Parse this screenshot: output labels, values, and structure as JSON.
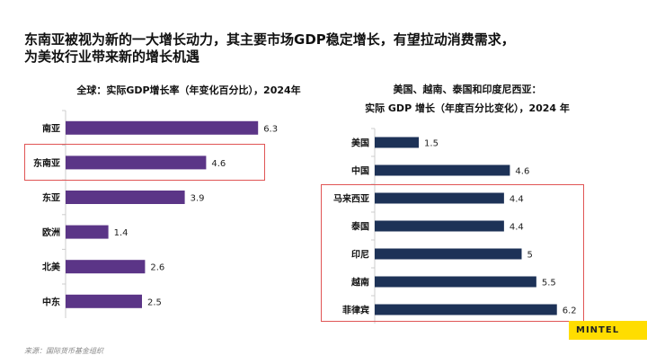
{
  "slide": {
    "title_line1": "东南亚被视为新的一大增长动力，其主要市场GDP稳定增长，有望拉动消费需求，",
    "title_line2": "为美妆行业带来新的增长机遇",
    "source": "来源：国际货币基金组织",
    "brand": "MINTEL"
  },
  "chart_data": [
    {
      "type": "bar",
      "orientation": "horizontal",
      "title": "全球：实际GDP增长率（年变化百分比），2024年",
      "categories": [
        "南亚",
        "东南亚",
        "东亚",
        "欧洲",
        "北美",
        "中东"
      ],
      "values": [
        6.3,
        4.6,
        3.9,
        1.4,
        2.6,
        2.5
      ],
      "color": "#5b3587",
      "highlight": [
        "东南亚"
      ],
      "highlight_color": "#e05555"
    },
    {
      "type": "bar",
      "orientation": "horizontal",
      "title_line1": "美国、越南、泰国和印度尼西亚：",
      "title_line2": "实际 GDP 增长（年度百分比变化），2024 年",
      "categories": [
        "美国",
        "中国",
        "马来西亚",
        "泰国",
        "印尼",
        "越南",
        "菲律宾"
      ],
      "values": [
        1.5,
        4.6,
        4.4,
        4.4,
        5,
        5.5,
        6.2
      ],
      "color": "#1d3257",
      "highlight": [
        "马来西亚",
        "泰国",
        "印尼",
        "越南",
        "菲律宾"
      ],
      "highlight_color": "#e05555"
    }
  ]
}
